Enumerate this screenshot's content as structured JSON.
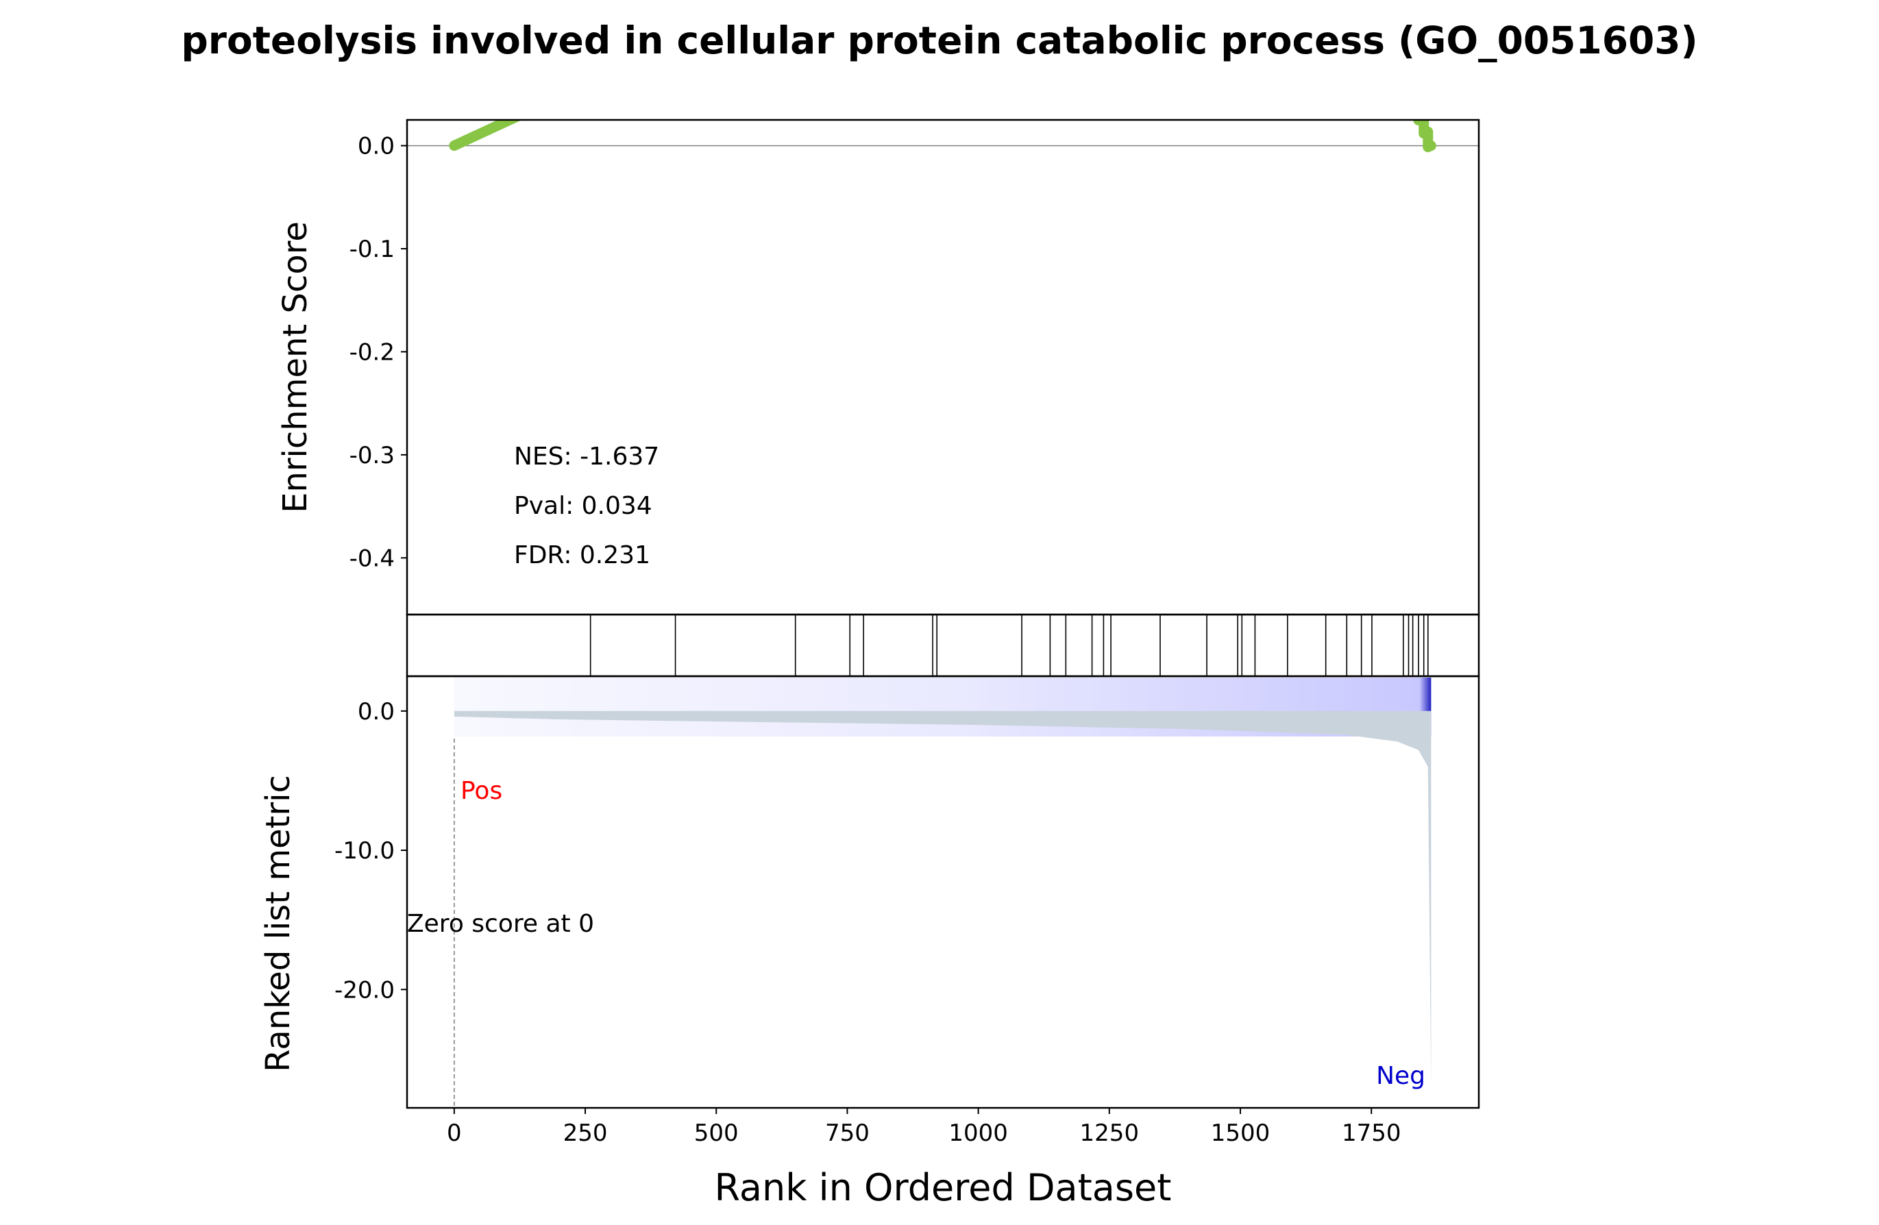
{
  "chart_data": {
    "type": "line",
    "title": "proteolysis involved in cellular protein catabolic process (GO_0051603)",
    "xlabel": "Rank in Ordered Dataset",
    "xlim": [
      -90,
      1955
    ],
    "x_ticks": [
      0,
      250,
      500,
      750,
      1000,
      1250,
      1500,
      1750
    ],
    "x_tick_labels": [
      "0",
      "250",
      "500",
      "750",
      "1000",
      "1250",
      "1500",
      "1750"
    ],
    "colors": {
      "es_line": "#88c544",
      "metric_fill": "#c9d3dc",
      "gradient_light": "#f8f8ff",
      "gradient_dark": "#c8c8ff",
      "gradient_end": "#2020c0",
      "pos_label": "#ff0000",
      "neg_label": "#0000cc",
      "zero_line": "#808080"
    },
    "enrichment_panel": {
      "ylabel": "Enrichment Score",
      "ylim": [
        -0.455,
        0.025
      ],
      "y_ticks": [
        0.0,
        -0.1,
        -0.2,
        -0.3,
        -0.4
      ],
      "y_tick_labels": [
        "0.0",
        "-0.1",
        "-0.2",
        "-0.3",
        "-0.4"
      ],
      "annotations": [
        "NES: -1.637",
        "Pval: 0.034",
        "FDR: 0.231"
      ],
      "hits": [
        260,
        422,
        651,
        755,
        781,
        913,
        921,
        1083,
        1137,
        1167,
        1217,
        1239,
        1253,
        1347,
        1436,
        1495,
        1503,
        1528,
        1590,
        1663,
        1703,
        1731,
        1751,
        1811,
        1821,
        1829,
        1840,
        1850,
        1858
      ],
      "n_genes": 1865,
      "es_start": 0.0,
      "es_end": 0.0
    },
    "metric_panel": {
      "ylabel": "Ranked list metric",
      "ylim": [
        -28.5,
        2.5
      ],
      "y_ticks": [
        0.0,
        -10.0,
        -20.0
      ],
      "y_tick_labels": [
        "0.0",
        "-10.0",
        "-20.0"
      ],
      "pos_label": "Pos",
      "neg_label": "Neg",
      "zero_score_label": "Zero score at 0",
      "zero_score_rank": 0,
      "metric_profile": [
        {
          "rank": 0,
          "value": -0.4
        },
        {
          "rank": 200,
          "value": -0.6
        },
        {
          "rank": 600,
          "value": -0.8
        },
        {
          "rank": 1000,
          "value": -1.0
        },
        {
          "rank": 1400,
          "value": -1.3
        },
        {
          "rank": 1700,
          "value": -1.7
        },
        {
          "rank": 1800,
          "value": -2.2
        },
        {
          "rank": 1840,
          "value": -2.8
        },
        {
          "rank": 1858,
          "value": -4.0
        },
        {
          "rank": 1864,
          "value": -27.0
        }
      ]
    }
  }
}
